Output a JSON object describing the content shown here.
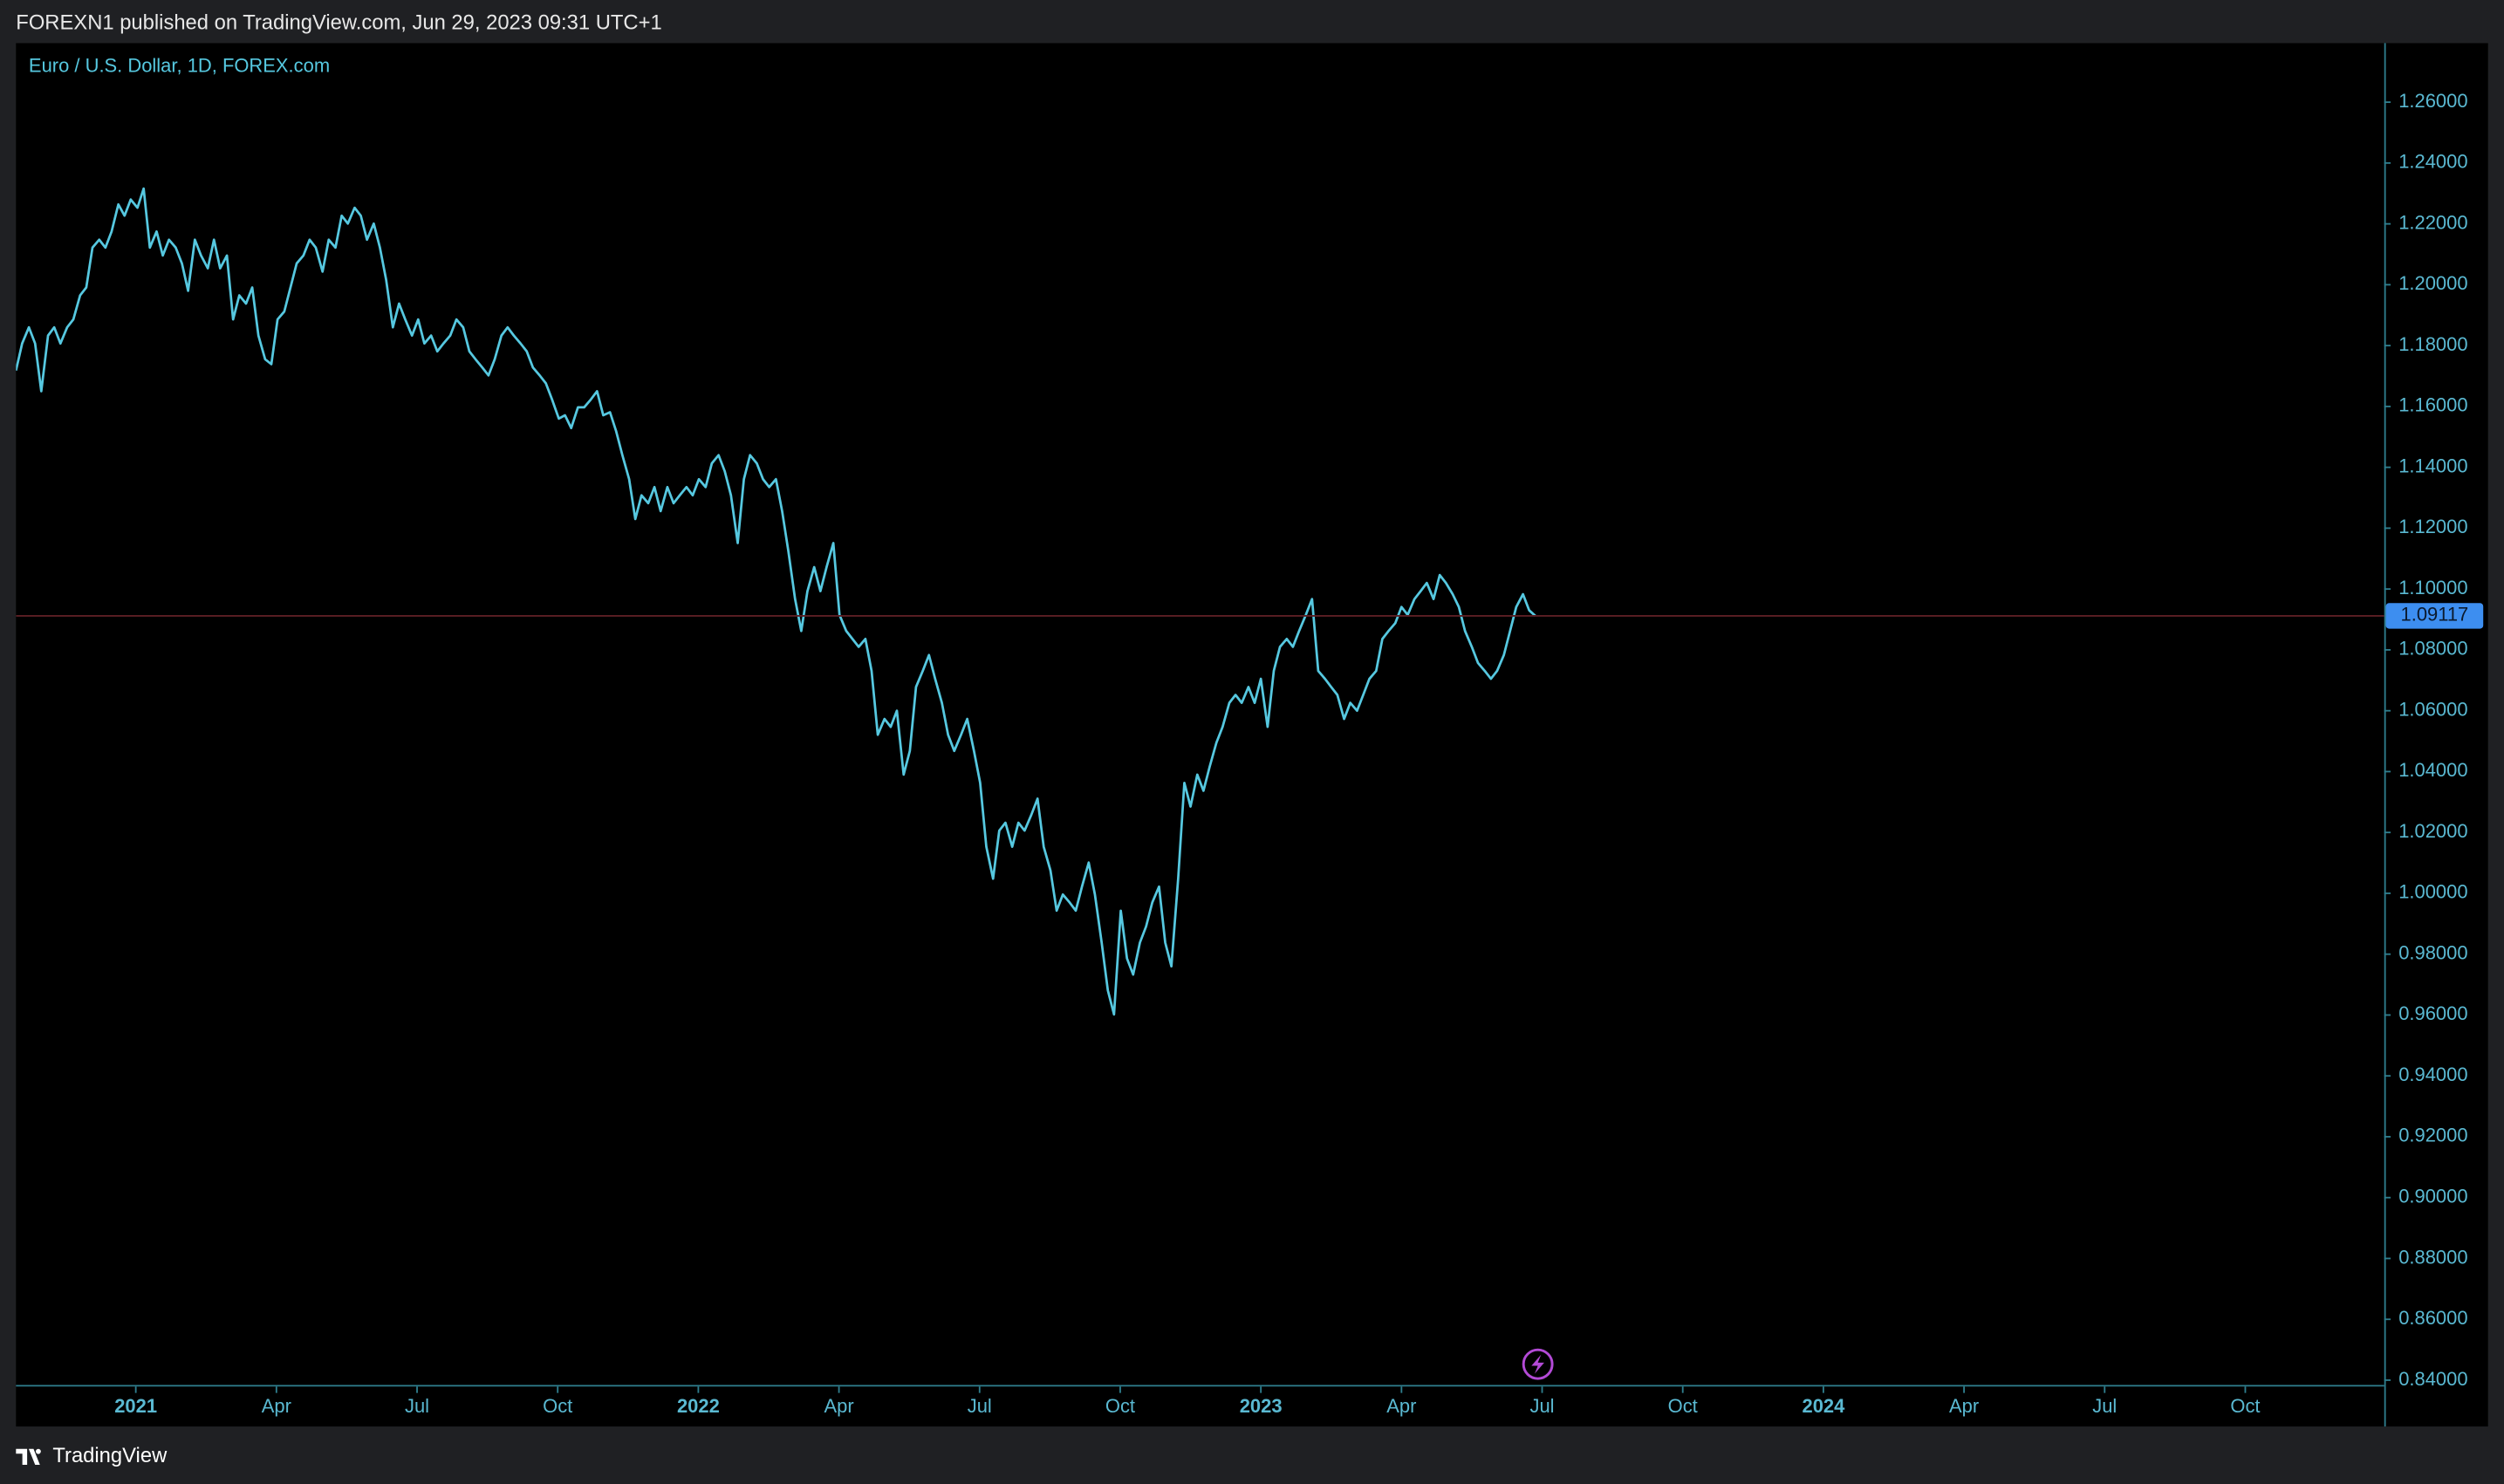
{
  "header": {
    "text": "FOREXN1 published on TradingView.com, Jun 29, 2023 09:31 UTC+1"
  },
  "footer": {
    "brand": "TradingView"
  },
  "chart_data": {
    "type": "line",
    "title": "Euro / U.S. Dollar, 1D, FOREX.com",
    "color": "#56c8e0",
    "grid": false,
    "x": [
      2020.787,
      2020.798,
      2020.81,
      2020.821,
      2020.832,
      2020.844,
      2020.855,
      2020.866,
      2020.878,
      2020.889,
      2020.901,
      2020.912,
      2020.923,
      2020.935,
      2020.946,
      2020.957,
      2020.969,
      2020.98,
      2020.991,
      2021.003,
      2021.014,
      2021.025,
      2021.037,
      2021.048,
      2021.059,
      2021.071,
      2021.082,
      2021.093,
      2021.105,
      2021.116,
      2021.128,
      2021.139,
      2021.15,
      2021.162,
      2021.173,
      2021.184,
      2021.196,
      2021.207,
      2021.218,
      2021.23,
      2021.241,
      2021.252,
      2021.264,
      2021.275,
      2021.286,
      2021.298,
      2021.309,
      2021.32,
      2021.332,
      2021.343,
      2021.355,
      2021.366,
      2021.377,
      2021.389,
      2021.4,
      2021.411,
      2021.423,
      2021.434,
      2021.445,
      2021.457,
      2021.468,
      2021.479,
      2021.491,
      2021.502,
      2021.513,
      2021.525,
      2021.536,
      2021.547,
      2021.559,
      2021.57,
      2021.582,
      2021.593,
      2021.604,
      2021.616,
      2021.627,
      2021.638,
      2021.65,
      2021.661,
      2021.672,
      2021.684,
      2021.695,
      2021.706,
      2021.718,
      2021.729,
      2021.74,
      2021.752,
      2021.763,
      2021.774,
      2021.786,
      2021.797,
      2021.809,
      2021.82,
      2021.831,
      2021.843,
      2021.854,
      2021.865,
      2021.877,
      2021.888,
      2021.899,
      2021.911,
      2021.922,
      2021.933,
      2021.945,
      2021.956,
      2021.967,
      2021.979,
      2021.99,
      2022.001,
      2022.013,
      2022.024,
      2022.036,
      2022.047,
      2022.058,
      2022.07,
      2022.081,
      2022.092,
      2022.104,
      2022.115,
      2022.126,
      2022.138,
      2022.149,
      2022.16,
      2022.172,
      2022.183,
      2022.194,
      2022.206,
      2022.217,
      2022.228,
      2022.24,
      2022.251,
      2022.263,
      2022.274,
      2022.285,
      2022.297,
      2022.308,
      2022.319,
      2022.331,
      2022.342,
      2022.353,
      2022.365,
      2022.376,
      2022.387,
      2022.399,
      2022.41,
      2022.421,
      2022.433,
      2022.444,
      2022.455,
      2022.467,
      2022.478,
      2022.49,
      2022.501,
      2022.512,
      2022.524,
      2022.535,
      2022.546,
      2022.558,
      2022.569,
      2022.58,
      2022.592,
      2022.603,
      2022.614,
      2022.626,
      2022.637,
      2022.648,
      2022.66,
      2022.671,
      2022.682,
      2022.694,
      2022.705,
      2022.717,
      2022.728,
      2022.739,
      2022.751,
      2022.762,
      2022.773,
      2022.785,
      2022.796,
      2022.807,
      2022.819,
      2022.83,
      2022.841,
      2022.853,
      2022.864,
      2022.875,
      2022.887,
      2022.898,
      2022.909,
      2022.921,
      2022.932,
      2022.944,
      2022.955,
      2022.966,
      2022.978,
      2022.989,
      2023.0,
      2023.012,
      2023.023,
      2023.034,
      2023.046,
      2023.057,
      2023.068,
      2023.08,
      2023.091,
      2023.102,
      2023.114,
      2023.125,
      2023.136,
      2023.148,
      2023.159,
      2023.171,
      2023.182,
      2023.193,
      2023.205,
      2023.216,
      2023.227,
      2023.239,
      2023.25,
      2023.261,
      2023.273,
      2023.284,
      2023.295,
      2023.307,
      2023.318,
      2023.329,
      2023.341,
      2023.352,
      2023.363,
      2023.375,
      2023.386,
      2023.398,
      2023.409,
      2023.42,
      2023.432,
      2023.443,
      2023.454,
      2023.466,
      2023.477,
      2023.488
    ],
    "values": [
      1.1718,
      1.1807,
      1.186,
      1.1807,
      1.165,
      1.1833,
      1.186,
      1.1807,
      1.186,
      1.1886,
      1.1965,
      1.1991,
      1.2122,
      1.2148,
      1.2122,
      1.2175,
      1.2264,
      1.2227,
      1.228,
      1.2253,
      1.2316,
      1.2122,
      1.2175,
      1.2096,
      1.2148,
      1.2122,
      1.207,
      1.198,
      1.2148,
      1.2096,
      1.2054,
      1.2148,
      1.2054,
      1.2096,
      1.1886,
      1.1965,
      1.1938,
      1.1991,
      1.1833,
      1.1755,
      1.1739,
      1.1886,
      1.1912,
      1.1991,
      1.207,
      1.2096,
      1.2148,
      1.2122,
      1.2043,
      1.2148,
      1.2122,
      1.2227,
      1.2201,
      1.2253,
      1.2227,
      1.2148,
      1.2201,
      1.2122,
      1.2017,
      1.186,
      1.1938,
      1.1886,
      1.1833,
      1.1886,
      1.1807,
      1.1833,
      1.1781,
      1.1807,
      1.1833,
      1.1886,
      1.186,
      1.1781,
      1.1755,
      1.1728,
      1.1702,
      1.1755,
      1.1833,
      1.186,
      1.1833,
      1.1807,
      1.1781,
      1.1728,
      1.1702,
      1.1676,
      1.1623,
      1.156,
      1.1571,
      1.1529,
      1.1597,
      1.1597,
      1.1623,
      1.165,
      1.1571,
      1.1581,
      1.1518,
      1.144,
      1.1361,
      1.123,
      1.1308,
      1.1282,
      1.1335,
      1.1256,
      1.1335,
      1.1282,
      1.1308,
      1.1335,
      1.1308,
      1.1361,
      1.1335,
      1.1413,
      1.144,
      1.1387,
      1.1308,
      1.1151,
      1.1361,
      1.144,
      1.1413,
      1.1361,
      1.1335,
      1.1361,
      1.1256,
      1.1125,
      1.0967,
      1.0862,
      1.0993,
      1.1072,
      1.0993,
      1.1072,
      1.1151,
      1.0915,
      1.0862,
      1.0836,
      1.081,
      1.0836,
      1.0731,
      1.0521,
      1.0573,
      1.0547,
      1.06,
      1.039,
      1.0468,
      1.0678,
      1.0731,
      1.0783,
      1.0705,
      1.0626,
      1.0521,
      1.0468,
      1.0521,
      1.0573,
      1.0468,
      1.0363,
      1.0153,
      1.0048,
      1.0206,
      1.0232,
      1.0153,
      1.0232,
      1.0206,
      1.0258,
      1.0311,
      1.0153,
      1.0075,
      0.9943,
      0.9996,
      0.997,
      0.9943,
      1.0022,
      1.0101,
      0.9996,
      0.9838,
      0.9681,
      0.9602,
      0.9943,
      0.9786,
      0.9733,
      0.9838,
      0.9891,
      0.997,
      1.0022,
      0.9838,
      0.976,
      1.0048,
      1.0363,
      1.0285,
      1.039,
      1.0337,
      1.0416,
      1.0495,
      1.0547,
      1.0626,
      1.0652,
      1.0626,
      1.0678,
      1.0626,
      1.0705,
      1.0547,
      1.0731,
      1.081,
      1.0836,
      1.081,
      1.0862,
      1.0915,
      1.0967,
      1.0731,
      1.0705,
      1.0678,
      1.0652,
      1.0573,
      1.0626,
      1.06,
      1.0652,
      1.0705,
      1.0731,
      1.0836,
      1.0862,
      1.0888,
      1.0941,
      1.0915,
      1.0967,
      1.0993,
      1.102,
      1.0967,
      1.1046,
      1.102,
      1.0983,
      1.0941,
      1.0862,
      1.081,
      1.0757,
      1.0731,
      1.0705,
      1.0731,
      1.0783,
      1.0862,
      1.0941,
      1.0983,
      1.093,
      1.09117
    ],
    "xlim": [
      2020.787,
      2024.997
    ],
    "xticks": [
      2021,
      {
        "value": 2021.25,
        "label": "Apr"
      },
      {
        "value": 2021.5,
        "label": "Jul"
      },
      {
        "value": 2021.75,
        "label": "Oct"
      },
      2022,
      {
        "value": 2022.25,
        "label": "Apr"
      },
      {
        "value": 2022.5,
        "label": "Jul"
      },
      {
        "value": 2022.75,
        "label": "Oct"
      },
      2023,
      {
        "value": 2023.25,
        "label": "Apr"
      },
      {
        "value": 2023.5,
        "label": "Jul"
      },
      {
        "value": 2023.75,
        "label": "Oct"
      },
      2024,
      {
        "value": 2024.25,
        "label": "Apr"
      },
      {
        "value": 2024.5,
        "label": "Jul"
      },
      {
        "value": 2024.75,
        "label": "Oct"
      }
    ],
    "ylim": [
      0.8379,
      1.2794
    ],
    "yticks": [
      {
        "value": 0.84,
        "label": "0.84000"
      },
      {
        "value": 0.86,
        "label": "0.86000"
      },
      {
        "value": 0.88,
        "label": "0.88000"
      },
      {
        "value": 0.9,
        "label": "0.90000"
      },
      {
        "value": 0.92,
        "label": "0.92000"
      },
      {
        "value": 0.94,
        "label": "0.94000"
      },
      {
        "value": 0.96,
        "label": "0.96000"
      },
      {
        "value": 0.98,
        "label": "0.98000"
      },
      {
        "value": 1.0,
        "label": "1.00000"
      },
      {
        "value": 1.02,
        "label": "1.02000"
      },
      {
        "value": 1.04,
        "label": "1.04000"
      },
      {
        "value": 1.06,
        "label": "1.06000"
      },
      {
        "value": 1.08,
        "label": "1.08000"
      },
      {
        "value": 1.1,
        "label": "1.10000"
      },
      {
        "value": 1.12,
        "label": "1.12000"
      },
      {
        "value": 1.14,
        "label": "1.14000"
      },
      {
        "value": 1.16,
        "label": "1.16000"
      },
      {
        "value": 1.18,
        "label": "1.18000"
      },
      {
        "value": 1.2,
        "label": "1.20000"
      },
      {
        "value": 1.22,
        "label": "1.22000"
      },
      {
        "value": 1.24,
        "label": "1.24000"
      },
      {
        "value": 1.26,
        "label": "1.26000"
      }
    ]
  }
}
